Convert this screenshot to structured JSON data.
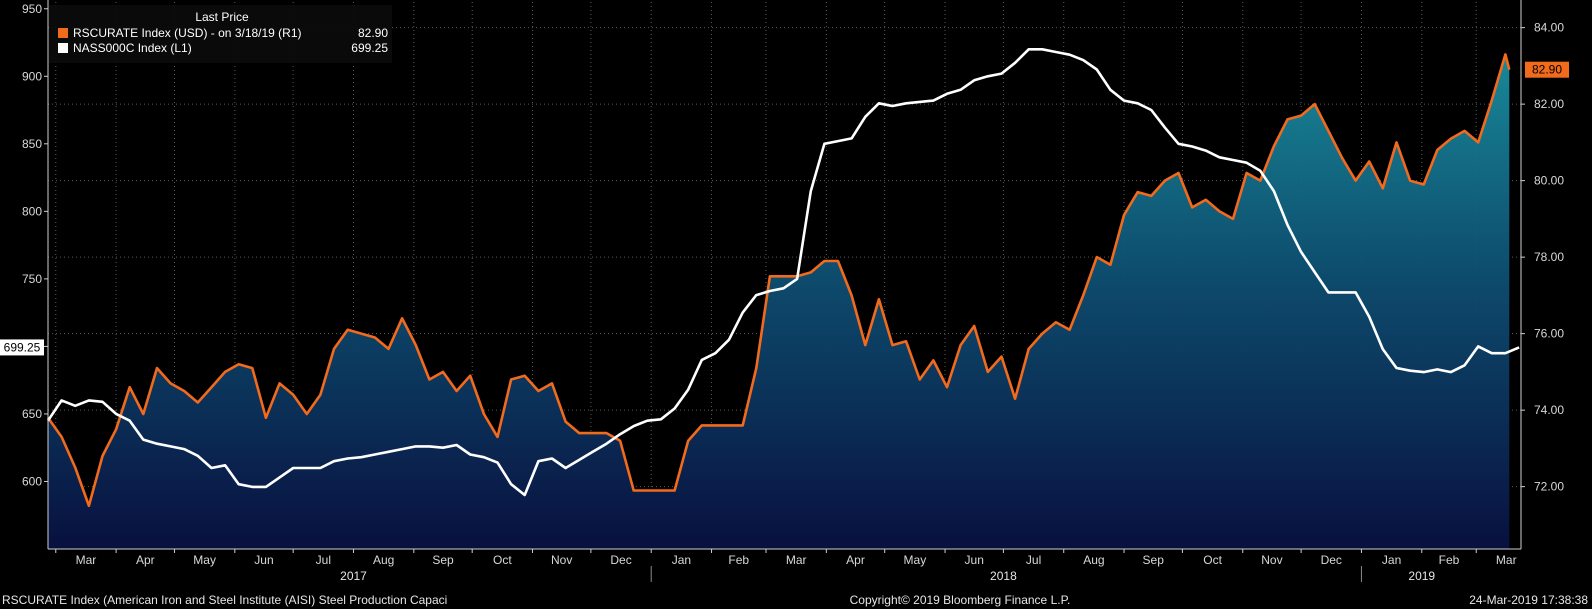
{
  "footer": {
    "left": "RSCURATE Index (American Iron and Steel Institute (AISI) Steel Production Capaci",
    "center": "Copyright© 2019 Bloomberg Finance L.P.",
    "right": "24-Mar-2019 17:38:38"
  },
  "legend": {
    "header": "Last Price",
    "entries": [
      {
        "label": "RSCURATE Index (USD) -  on 3/18/19  (R1)",
        "value": "82.90",
        "color": "#f26a1b"
      },
      {
        "label": "NASS000C Index  (L1)",
        "value": "699.25",
        "color": "#ffffff"
      }
    ]
  },
  "chart_data": {
    "type": "line",
    "x_axis": {
      "type": "date",
      "range": [
        "2017-02-25",
        "2019-03-24"
      ],
      "month_ticks": [
        {
          "label": "Mar",
          "date": "2017-03-01"
        },
        {
          "label": "Apr",
          "date": "2017-04-01"
        },
        {
          "label": "May",
          "date": "2017-05-01"
        },
        {
          "label": "Jun",
          "date": "2017-06-01"
        },
        {
          "label": "Jul",
          "date": "2017-07-01"
        },
        {
          "label": "Aug",
          "date": "2017-08-01"
        },
        {
          "label": "Sep",
          "date": "2017-09-01"
        },
        {
          "label": "Oct",
          "date": "2017-10-01"
        },
        {
          "label": "Nov",
          "date": "2017-11-01"
        },
        {
          "label": "Dec",
          "date": "2017-12-01"
        },
        {
          "label": "Jan",
          "date": "2018-01-01"
        },
        {
          "label": "Feb",
          "date": "2018-02-01"
        },
        {
          "label": "Mar",
          "date": "2018-03-01"
        },
        {
          "label": "Apr",
          "date": "2018-04-01"
        },
        {
          "label": "May",
          "date": "2018-05-01"
        },
        {
          "label": "Jun",
          "date": "2018-06-01"
        },
        {
          "label": "Jul",
          "date": "2018-07-01"
        },
        {
          "label": "Aug",
          "date": "2018-08-01"
        },
        {
          "label": "Sep",
          "date": "2018-09-01"
        },
        {
          "label": "Oct",
          "date": "2018-10-01"
        },
        {
          "label": "Nov",
          "date": "2018-11-01"
        },
        {
          "label": "Dec",
          "date": "2018-12-01"
        },
        {
          "label": "Jan",
          "date": "2019-01-01"
        },
        {
          "label": "Feb",
          "date": "2019-02-01"
        },
        {
          "label": "Mar",
          "date": "2019-03-01"
        }
      ],
      "years": [
        {
          "label": "2017",
          "date": "2017-08-01",
          "boundary": "2018-01-01"
        },
        {
          "label": "2018",
          "date": "2018-07-01",
          "boundary": "2019-01-01"
        },
        {
          "label": "2019",
          "date": "2019-02-01"
        }
      ]
    },
    "left_axis": {
      "min": 550,
      "max": 955,
      "ticks": [
        600,
        650,
        700,
        750,
        800,
        850,
        900,
        950
      ],
      "labels": [
        "600",
        "650",
        "",
        "750",
        "800",
        "850",
        "900",
        "950"
      ]
    },
    "right_axis": {
      "min": 70.37,
      "max": 84.67,
      "ticks": [
        72,
        74,
        76,
        78,
        80,
        82,
        84
      ],
      "labels": [
        "72.00",
        "74.00",
        "76.00",
        "78.00",
        "80.00",
        "82.00",
        "84.00"
      ]
    },
    "grid": true,
    "legend_position": "top-left",
    "series": [
      {
        "name": "RSCURATE Index (USD)",
        "axis": "right",
        "color": "#f26a1b",
        "style": "line-area",
        "last_value": "82.90",
        "points": [
          [
            "2017-02-25",
            73.8
          ],
          [
            "2017-03-04",
            73.3
          ],
          [
            "2017-03-11",
            72.5
          ],
          [
            "2017-03-18",
            71.5
          ],
          [
            "2017-03-25",
            72.8
          ],
          [
            "2017-04-01",
            73.5
          ],
          [
            "2017-04-08",
            74.6
          ],
          [
            "2017-04-15",
            73.9
          ],
          [
            "2017-04-22",
            75.1
          ],
          [
            "2017-04-29",
            74.7
          ],
          [
            "2017-05-06",
            74.5
          ],
          [
            "2017-05-13",
            74.2
          ],
          [
            "2017-05-20",
            74.6
          ],
          [
            "2017-05-27",
            75.0
          ],
          [
            "2017-06-03",
            75.2
          ],
          [
            "2017-06-10",
            75.1
          ],
          [
            "2017-06-17",
            73.8
          ],
          [
            "2017-06-24",
            74.7
          ],
          [
            "2017-07-01",
            74.4
          ],
          [
            "2017-07-08",
            73.9
          ],
          [
            "2017-07-15",
            74.4
          ],
          [
            "2017-07-22",
            75.6
          ],
          [
            "2017-07-29",
            76.1
          ],
          [
            "2017-08-05",
            76.0
          ],
          [
            "2017-08-12",
            75.9
          ],
          [
            "2017-08-19",
            75.6
          ],
          [
            "2017-08-26",
            76.4
          ],
          [
            "2017-09-02",
            75.7
          ],
          [
            "2017-09-09",
            74.8
          ],
          [
            "2017-09-16",
            75.0
          ],
          [
            "2017-09-23",
            74.5
          ],
          [
            "2017-09-30",
            74.9
          ],
          [
            "2017-10-07",
            73.9
          ],
          [
            "2017-10-14",
            73.3
          ],
          [
            "2017-10-21",
            74.8
          ],
          [
            "2017-10-28",
            74.9
          ],
          [
            "2017-11-04",
            74.5
          ],
          [
            "2017-11-11",
            74.7
          ],
          [
            "2017-11-18",
            73.7
          ],
          [
            "2017-11-25",
            73.4
          ],
          [
            "2017-12-02",
            73.4
          ],
          [
            "2017-12-09",
            73.4
          ],
          [
            "2017-12-16",
            73.2
          ],
          [
            "2017-12-23",
            71.9
          ],
          [
            "2017-12-30",
            71.9
          ],
          [
            "2018-01-06",
            71.9
          ],
          [
            "2018-01-13",
            71.9
          ],
          [
            "2018-01-20",
            73.2
          ],
          [
            "2018-01-27",
            73.6
          ],
          [
            "2018-02-03",
            73.6
          ],
          [
            "2018-02-10",
            73.6
          ],
          [
            "2018-02-17",
            73.6
          ],
          [
            "2018-02-24",
            75.1
          ],
          [
            "2018-03-03",
            77.5
          ],
          [
            "2018-03-10",
            77.5
          ],
          [
            "2018-03-17",
            77.5
          ],
          [
            "2018-03-24",
            77.6
          ],
          [
            "2018-03-31",
            77.9
          ],
          [
            "2018-04-07",
            77.9
          ],
          [
            "2018-04-14",
            77.0
          ],
          [
            "2018-04-21",
            75.7
          ],
          [
            "2018-04-28",
            76.9
          ],
          [
            "2018-05-05",
            75.7
          ],
          [
            "2018-05-12",
            75.8
          ],
          [
            "2018-05-19",
            74.8
          ],
          [
            "2018-05-26",
            75.3
          ],
          [
            "2018-06-02",
            74.6
          ],
          [
            "2018-06-09",
            75.7
          ],
          [
            "2018-06-16",
            76.2
          ],
          [
            "2018-06-23",
            75.0
          ],
          [
            "2018-06-30",
            75.4
          ],
          [
            "2018-07-07",
            74.3
          ],
          [
            "2018-07-14",
            75.6
          ],
          [
            "2018-07-21",
            76.0
          ],
          [
            "2018-07-28",
            76.3
          ],
          [
            "2018-08-04",
            76.1
          ],
          [
            "2018-08-11",
            77.0
          ],
          [
            "2018-08-18",
            78.0
          ],
          [
            "2018-08-25",
            77.8
          ],
          [
            "2018-09-01",
            79.1
          ],
          [
            "2018-09-08",
            79.7
          ],
          [
            "2018-09-15",
            79.6
          ],
          [
            "2018-09-22",
            80.0
          ],
          [
            "2018-09-29",
            80.2
          ],
          [
            "2018-10-06",
            79.3
          ],
          [
            "2018-10-13",
            79.5
          ],
          [
            "2018-10-20",
            79.2
          ],
          [
            "2018-10-27",
            79.0
          ],
          [
            "2018-11-03",
            80.2
          ],
          [
            "2018-11-10",
            80.0
          ],
          [
            "2018-11-17",
            80.9
          ],
          [
            "2018-11-24",
            81.6
          ],
          [
            "2018-12-01",
            81.7
          ],
          [
            "2018-12-08",
            82.0
          ],
          [
            "2018-12-15",
            81.3
          ],
          [
            "2018-12-22",
            80.6
          ],
          [
            "2018-12-29",
            80.0
          ],
          [
            "2019-01-05",
            80.5
          ],
          [
            "2019-01-12",
            79.8
          ],
          [
            "2019-01-19",
            81.0
          ],
          [
            "2019-01-26",
            80.0
          ],
          [
            "2019-02-02",
            79.9
          ],
          [
            "2019-02-09",
            80.8
          ],
          [
            "2019-02-16",
            81.1
          ],
          [
            "2019-02-23",
            81.3
          ],
          [
            "2019-03-02",
            81.0
          ],
          [
            "2019-03-09",
            82.1
          ],
          [
            "2019-03-16",
            83.3
          ],
          [
            "2019-03-18",
            82.9
          ]
        ]
      },
      {
        "name": "NASS000C Index",
        "axis": "left",
        "color": "#ffffff",
        "style": "line",
        "last_value": "699.25",
        "points": [
          [
            "2017-02-25",
            645
          ],
          [
            "2017-03-04",
            660
          ],
          [
            "2017-03-11",
            656
          ],
          [
            "2017-03-18",
            660
          ],
          [
            "2017-03-25",
            659
          ],
          [
            "2017-04-01",
            650
          ],
          [
            "2017-04-08",
            645
          ],
          [
            "2017-04-15",
            631
          ],
          [
            "2017-04-22",
            628
          ],
          [
            "2017-04-29",
            626
          ],
          [
            "2017-05-06",
            624
          ],
          [
            "2017-05-13",
            619
          ],
          [
            "2017-05-20",
            610
          ],
          [
            "2017-05-27",
            612
          ],
          [
            "2017-06-03",
            598
          ],
          [
            "2017-06-10",
            596
          ],
          [
            "2017-06-17",
            596
          ],
          [
            "2017-06-24",
            603
          ],
          [
            "2017-07-01",
            610
          ],
          [
            "2017-07-08",
            610
          ],
          [
            "2017-07-15",
            610
          ],
          [
            "2017-07-22",
            615
          ],
          [
            "2017-07-29",
            617
          ],
          [
            "2017-08-05",
            618
          ],
          [
            "2017-08-12",
            620
          ],
          [
            "2017-08-19",
            622
          ],
          [
            "2017-08-26",
            624
          ],
          [
            "2017-09-02",
            626
          ],
          [
            "2017-09-09",
            626
          ],
          [
            "2017-09-16",
            625
          ],
          [
            "2017-09-23",
            627
          ],
          [
            "2017-09-30",
            620
          ],
          [
            "2017-10-07",
            618
          ],
          [
            "2017-10-14",
            614
          ],
          [
            "2017-10-21",
            598
          ],
          [
            "2017-10-28",
            590
          ],
          [
            "2017-11-04",
            615
          ],
          [
            "2017-11-11",
            617
          ],
          [
            "2017-11-18",
            610
          ],
          [
            "2017-11-25",
            616
          ],
          [
            "2017-12-02",
            622
          ],
          [
            "2017-12-09",
            628
          ],
          [
            "2017-12-16",
            635
          ],
          [
            "2017-12-23",
            641
          ],
          [
            "2017-12-30",
            645
          ],
          [
            "2018-01-06",
            646
          ],
          [
            "2018-01-13",
            654
          ],
          [
            "2018-01-20",
            668
          ],
          [
            "2018-01-27",
            690
          ],
          [
            "2018-02-03",
            695
          ],
          [
            "2018-02-10",
            705
          ],
          [
            "2018-02-17",
            725
          ],
          [
            "2018-02-24",
            738
          ],
          [
            "2018-03-03",
            741
          ],
          [
            "2018-03-10",
            743
          ],
          [
            "2018-03-17",
            750
          ],
          [
            "2018-03-24",
            815
          ],
          [
            "2018-03-31",
            850
          ],
          [
            "2018-04-07",
            852
          ],
          [
            "2018-04-14",
            854
          ],
          [
            "2018-04-21",
            870
          ],
          [
            "2018-04-28",
            880
          ],
          [
            "2018-05-05",
            878
          ],
          [
            "2018-05-12",
            880
          ],
          [
            "2018-05-19",
            881
          ],
          [
            "2018-05-26",
            882
          ],
          [
            "2018-06-02",
            887
          ],
          [
            "2018-06-09",
            890
          ],
          [
            "2018-06-16",
            897
          ],
          [
            "2018-06-23",
            900
          ],
          [
            "2018-06-30",
            902
          ],
          [
            "2018-07-07",
            910
          ],
          [
            "2018-07-14",
            920
          ],
          [
            "2018-07-21",
            920
          ],
          [
            "2018-07-28",
            918
          ],
          [
            "2018-08-04",
            916
          ],
          [
            "2018-08-11",
            912
          ],
          [
            "2018-08-18",
            905
          ],
          [
            "2018-08-25",
            890
          ],
          [
            "2018-09-01",
            882
          ],
          [
            "2018-09-08",
            880
          ],
          [
            "2018-09-15",
            875
          ],
          [
            "2018-09-22",
            862
          ],
          [
            "2018-09-29",
            850
          ],
          [
            "2018-10-06",
            848
          ],
          [
            "2018-10-13",
            845
          ],
          [
            "2018-10-20",
            840
          ],
          [
            "2018-10-27",
            838
          ],
          [
            "2018-11-03",
            836
          ],
          [
            "2018-11-10",
            830
          ],
          [
            "2018-11-17",
            815
          ],
          [
            "2018-11-24",
            790
          ],
          [
            "2018-12-01",
            770
          ],
          [
            "2018-12-08",
            755
          ],
          [
            "2018-12-15",
            740
          ],
          [
            "2018-12-22",
            740
          ],
          [
            "2018-12-29",
            740
          ],
          [
            "2019-01-05",
            722
          ],
          [
            "2019-01-12",
            698
          ],
          [
            "2019-01-19",
            684
          ],
          [
            "2019-01-26",
            682
          ],
          [
            "2019-02-02",
            681
          ],
          [
            "2019-02-09",
            683
          ],
          [
            "2019-02-16",
            681
          ],
          [
            "2019-02-23",
            686
          ],
          [
            "2019-03-02",
            700
          ],
          [
            "2019-03-09",
            695
          ],
          [
            "2019-03-16",
            695
          ],
          [
            "2019-03-23",
            699.25
          ]
        ]
      }
    ]
  }
}
